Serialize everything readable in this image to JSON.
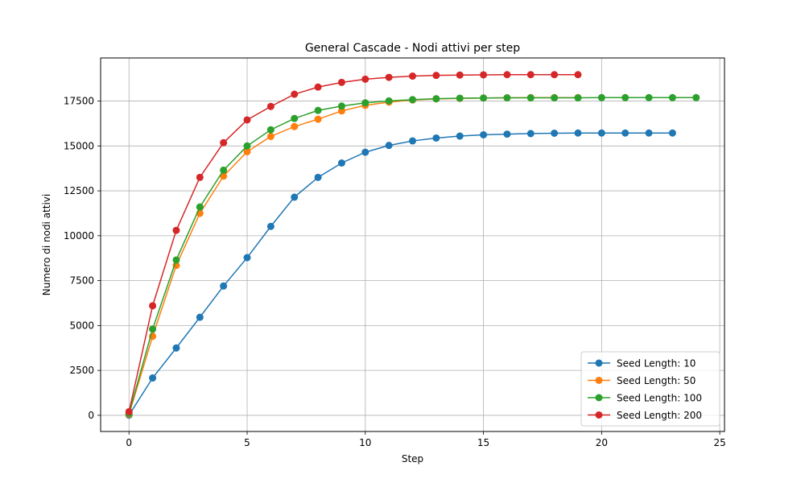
{
  "chart_data": {
    "type": "line",
    "title": "General Cascade - Nodi attivi per step",
    "xlabel": "Step",
    "ylabel": "Numero di nodi attivi",
    "xlim": [
      -1.2,
      25.2
    ],
    "ylim": [
      -900,
      19900
    ],
    "xticks": [
      0,
      5,
      10,
      15,
      20,
      25
    ],
    "yticks": [
      0,
      2500,
      5000,
      7500,
      10000,
      12500,
      15000,
      17500
    ],
    "grid": true,
    "legend_position": "lower right",
    "series": [
      {
        "name": "Seed Length: 10",
        "color": "#1f77b4",
        "values": [
          10,
          2080,
          3750,
          5460,
          7200,
          8780,
          10520,
          12150,
          13250,
          14050,
          14650,
          15030,
          15280,
          15440,
          15550,
          15620,
          15660,
          15690,
          15710,
          15720,
          15720,
          15720,
          15720,
          15720
        ]
      },
      {
        "name": "Seed Length: 50",
        "color": "#ff7f0e",
        "values": [
          50,
          4400,
          8350,
          11250,
          13320,
          14680,
          15530,
          16080,
          16490,
          16950,
          17260,
          17440,
          17560,
          17620,
          17650,
          17670,
          17680,
          17690,
          17690,
          17690
        ]
      },
      {
        "name": "Seed Length: 100",
        "color": "#2ca02c",
        "values": [
          100,
          4800,
          8650,
          11600,
          13650,
          15000,
          15900,
          16530,
          16980,
          17220,
          17400,
          17510,
          17580,
          17630,
          17660,
          17670,
          17680,
          17680,
          17680,
          17680,
          17690,
          17690,
          17690,
          17690,
          17690
        ]
      },
      {
        "name": "Seed Length: 200",
        "color": "#d62728",
        "values": [
          200,
          6100,
          10300,
          13250,
          15180,
          16450,
          17200,
          17880,
          18280,
          18540,
          18720,
          18820,
          18890,
          18930,
          18950,
          18960,
          18970,
          18970,
          18970,
          18970
        ]
      }
    ]
  }
}
